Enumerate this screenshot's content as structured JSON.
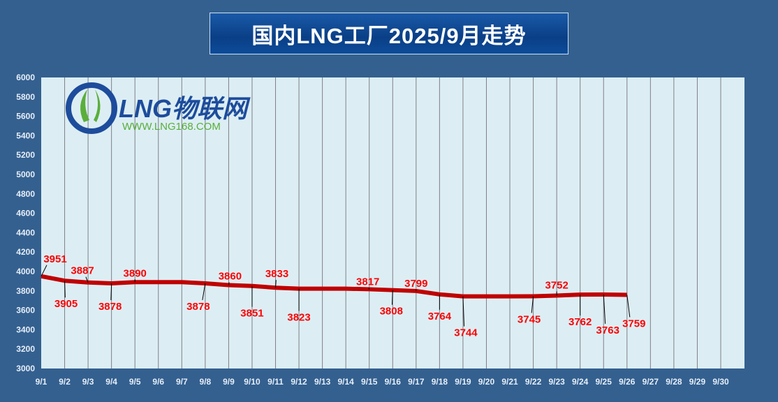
{
  "chart_data": {
    "type": "line",
    "title": "国内LNG工厂2025/9月走势",
    "xlabel": "",
    "ylabel": "",
    "ylim": [
      3000,
      6000
    ],
    "yticks": [
      3000,
      3200,
      3400,
      3600,
      3800,
      4000,
      4200,
      4400,
      4600,
      4800,
      5000,
      5200,
      5400,
      5600,
      5800,
      6000
    ],
    "categories": [
      "9/1",
      "9/2",
      "9/3",
      "9/4",
      "9/5",
      "9/6",
      "9/7",
      "9/8",
      "9/9",
      "9/10",
      "9/11",
      "9/12",
      "9/13",
      "9/14",
      "9/15",
      "9/16",
      "9/17",
      "9/18",
      "9/19",
      "9/20",
      "9/21",
      "9/22",
      "9/23",
      "9/24",
      "9/25",
      "9/26",
      "9/27",
      "9/28",
      "9/29",
      "9/30"
    ],
    "series": [
      {
        "name": "LNG",
        "color": "#c00000",
        "values": [
          3951,
          3905,
          3887,
          3878,
          3890,
          3890,
          3890,
          3878,
          3860,
          3851,
          3833,
          3823,
          3823,
          3823,
          3817,
          3808,
          3799,
          3764,
          3744,
          3744,
          3744,
          3745,
          3752,
          3762,
          3763,
          3759,
          null,
          null,
          null,
          null
        ],
        "labeled": [
          true,
          true,
          true,
          true,
          true,
          false,
          false,
          true,
          true,
          true,
          true,
          true,
          false,
          false,
          true,
          true,
          true,
          true,
          true,
          false,
          false,
          true,
          true,
          true,
          true,
          true,
          false,
          false,
          false,
          false
        ]
      }
    ],
    "grid": "vertical",
    "legend": "none"
  },
  "logo": {
    "brand": "LNG物联网",
    "url": "WWW.LNG168.COM"
  }
}
